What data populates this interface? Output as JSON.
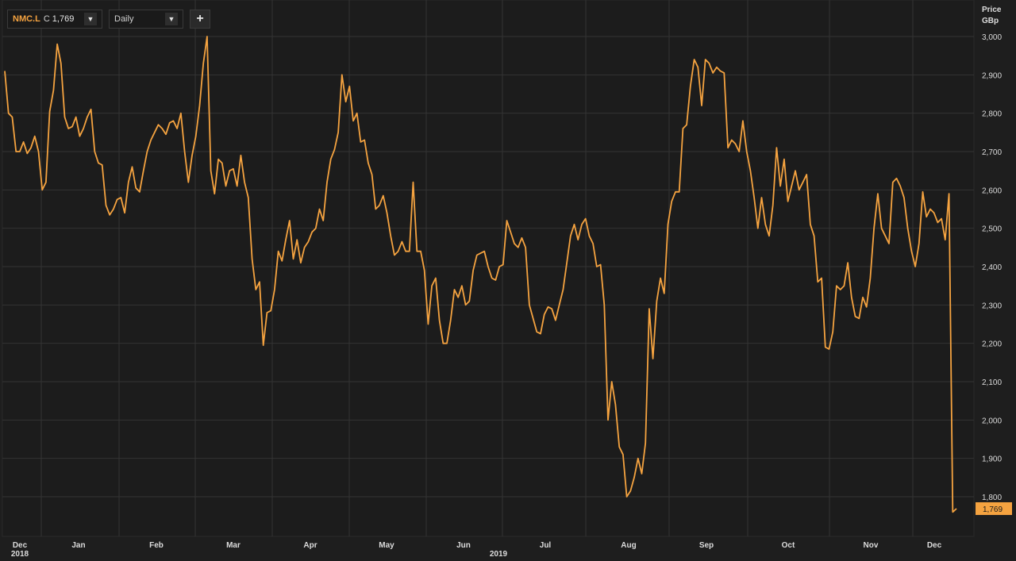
{
  "toolbar": {
    "ticker": "NMC.L",
    "close_label": "C",
    "close_value": "1,769",
    "period": "Daily",
    "add_label": "+"
  },
  "colors": {
    "background": "#1e1e1e",
    "line": "#f5a340",
    "grid": "#333333",
    "label_bg": "#f5a340"
  },
  "chart_data": {
    "type": "line",
    "ylabel": "Price",
    "yunit": "GBp",
    "ylim": [
      1700,
      3050
    ],
    "yticks": [
      1800,
      1900,
      2000,
      2100,
      2200,
      2300,
      2400,
      2500,
      2600,
      2700,
      2800,
      2900,
      3000
    ],
    "ytick_labels": [
      "1,800",
      "1,900",
      "2,000",
      "2,100",
      "2,200",
      "2,300",
      "2,400",
      "2,500",
      "2,600",
      "2,700",
      "2,800",
      "2,900",
      "3,000"
    ],
    "month_labels": [
      "Dec",
      "Jan",
      "Feb",
      "Mar",
      "Apr",
      "May",
      "Jun",
      "Jul",
      "Aug",
      "Sep",
      "Oct",
      "Nov",
      "Dec"
    ],
    "year_labels": [
      "2018",
      "2019"
    ],
    "last_value_label": "1,769",
    "grid": true,
    "series": [
      {
        "values": [
          2910,
          2800,
          2790,
          2700,
          2700,
          2725,
          2695,
          2710,
          2740,
          2700,
          2600,
          2620,
          2805,
          2860,
          2980,
          2930,
          2790,
          2760,
          2765,
          2790,
          2740,
          2760,
          2790,
          2810,
          2700,
          2670,
          2665,
          2560,
          2535,
          2550,
          2575,
          2580,
          2540,
          2620,
          2660,
          2605,
          2595,
          2650,
          2700,
          2730,
          2750,
          2770,
          2760,
          2745,
          2775,
          2780,
          2760,
          2800,
          2700,
          2620,
          2690,
          2740,
          2820,
          2930,
          3000,
          2650,
          2590,
          2680,
          2670,
          2610,
          2650,
          2655,
          2610,
          2690,
          2620,
          2580,
          2420,
          2340,
          2360,
          2195,
          2280,
          2285,
          2340,
          2440,
          2415,
          2470,
          2520,
          2420,
          2470,
          2410,
          2450,
          2465,
          2490,
          2500,
          2550,
          2520,
          2620,
          2680,
          2705,
          2750,
          2900,
          2830,
          2870,
          2780,
          2800,
          2725,
          2730,
          2670,
          2640,
          2550,
          2560,
          2585,
          2540,
          2480,
          2430,
          2440,
          2465,
          2440,
          2440,
          2620,
          2440,
          2440,
          2390,
          2250,
          2350,
          2370,
          2260,
          2200,
          2200,
          2260,
          2340,
          2320,
          2350,
          2300,
          2310,
          2390,
          2430,
          2435,
          2440,
          2400,
          2370,
          2365,
          2400,
          2405,
          2520,
          2490,
          2460,
          2450,
          2475,
          2450,
          2300,
          2265,
          2230,
          2225,
          2275,
          2295,
          2290,
          2260,
          2300,
          2340,
          2410,
          2480,
          2510,
          2470,
          2510,
          2525,
          2480,
          2460,
          2400,
          2405,
          2300,
          2000,
          2100,
          2040,
          1930,
          1910,
          1800,
          1815,
          1850,
          1900,
          1860,
          1940,
          2290,
          2160,
          2310,
          2370,
          2330,
          2510,
          2570,
          2595,
          2595,
          2760,
          2770,
          2870,
          2940,
          2920,
          2820,
          2940,
          2930,
          2905,
          2920,
          2910,
          2905,
          2710,
          2730,
          2720,
          2700,
          2780,
          2700,
          2650,
          2580,
          2500,
          2580,
          2510,
          2480,
          2560,
          2710,
          2610,
          2680,
          2570,
          2610,
          2650,
          2600,
          2620,
          2640,
          2510,
          2480,
          2360,
          2370,
          2190,
          2185,
          2230,
          2350,
          2340,
          2350,
          2410,
          2320,
          2270,
          2265,
          2320,
          2295,
          2370,
          2500,
          2590,
          2500,
          2480,
          2460,
          2620,
          2630,
          2610,
          2580,
          2500,
          2440,
          2400,
          2460,
          2595,
          2530,
          2550,
          2540,
          2515,
          2525,
          2470,
          2590,
          1760,
          1769
        ]
      }
    ]
  }
}
